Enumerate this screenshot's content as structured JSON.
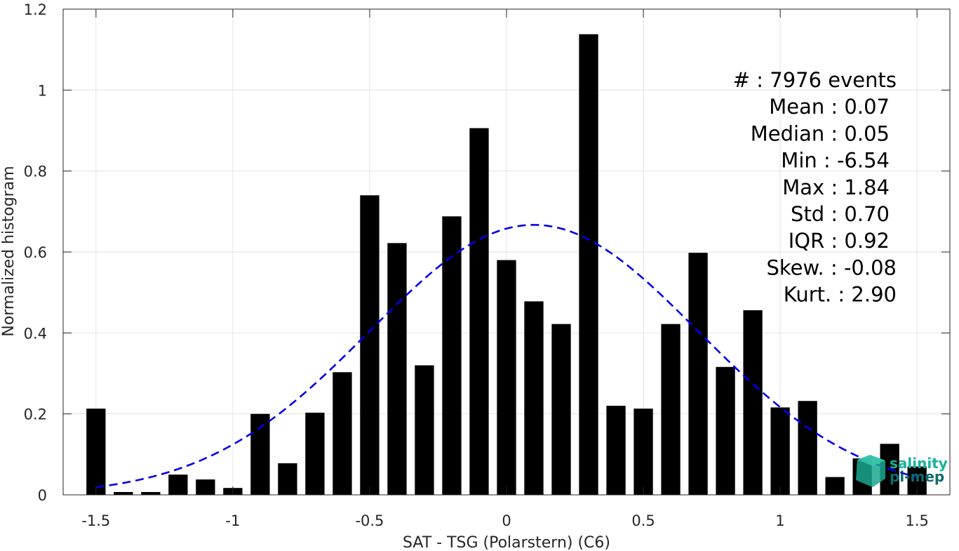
{
  "chart_data": {
    "type": "bar",
    "xlabel": "SAT - TSG (Polarstern) (C6)",
    "ylabel": "Normalized histogram",
    "xlim": [
      -1.62,
      1.62
    ],
    "ylim": [
      0,
      1.2
    ],
    "xticks": [
      -1.5,
      -1,
      -0.5,
      0,
      0.5,
      1,
      1.5
    ],
    "xtick_labels": [
      "-1.5",
      "-1",
      "-0.5",
      "0",
      "0.5",
      "1",
      "1.5"
    ],
    "yticks": [
      0,
      0.2,
      0.4,
      0.6,
      0.8,
      1,
      1.2
    ],
    "ytick_labels": [
      "0",
      "0.2",
      "0.4",
      "0.6",
      "0.8",
      "1",
      "1.2"
    ],
    "grid": true,
    "bar_color": "#000000",
    "bins": [
      -1.5,
      -1.4,
      -1.3,
      -1.2,
      -1.1,
      -1.0,
      -0.9,
      -0.8,
      -0.7,
      -0.6,
      -0.5,
      -0.4,
      -0.3,
      -0.2,
      -0.1,
      0.0,
      0.1,
      0.2,
      0.3,
      0.4,
      0.5,
      0.6,
      0.7,
      0.8,
      0.9,
      1.0,
      1.1,
      1.2,
      1.3,
      1.4,
      1.5
    ],
    "values": [
      0.213,
      0.007,
      0.007,
      0.05,
      0.038,
      0.017,
      0.2,
      0.078,
      0.203,
      0.303,
      0.74,
      0.622,
      0.32,
      0.688,
      0.906,
      0.58,
      0.478,
      0.422,
      1.138,
      0.22,
      0.213,
      0.422,
      0.598,
      0.316,
      0.456,
      0.216,
      0.232,
      0.044,
      0.09,
      0.126,
      0.07
    ],
    "fit_curve": {
      "type": "gaussian",
      "color": "#0000ee",
      "style": "dashed",
      "mean": 0.1,
      "std": 0.6,
      "peak": 0.667,
      "x_range": [
        -1.5,
        1.5
      ]
    },
    "stats": [
      {
        "label": "#",
        "value": "  : 7976 events"
      },
      {
        "label": "Mean",
        "value": " : 0.07"
      },
      {
        "label": "Median",
        "value": " : 0.05"
      },
      {
        "label": "Min",
        "value": " : -6.54"
      },
      {
        "label": "Max",
        "value": " : 1.84"
      },
      {
        "label": "Std",
        "value": " : 0.70"
      },
      {
        "label": "IQR",
        "value": " : 0.92"
      },
      {
        "label": "Skew.",
        "value": " : -0.08"
      },
      {
        "label": "Kurt.",
        "value": " : 2.90"
      }
    ]
  },
  "logo": {
    "line1": "salinity",
    "line2": "pi-mep",
    "color1": "#19b39a",
    "color2": "#0e6b6b"
  }
}
